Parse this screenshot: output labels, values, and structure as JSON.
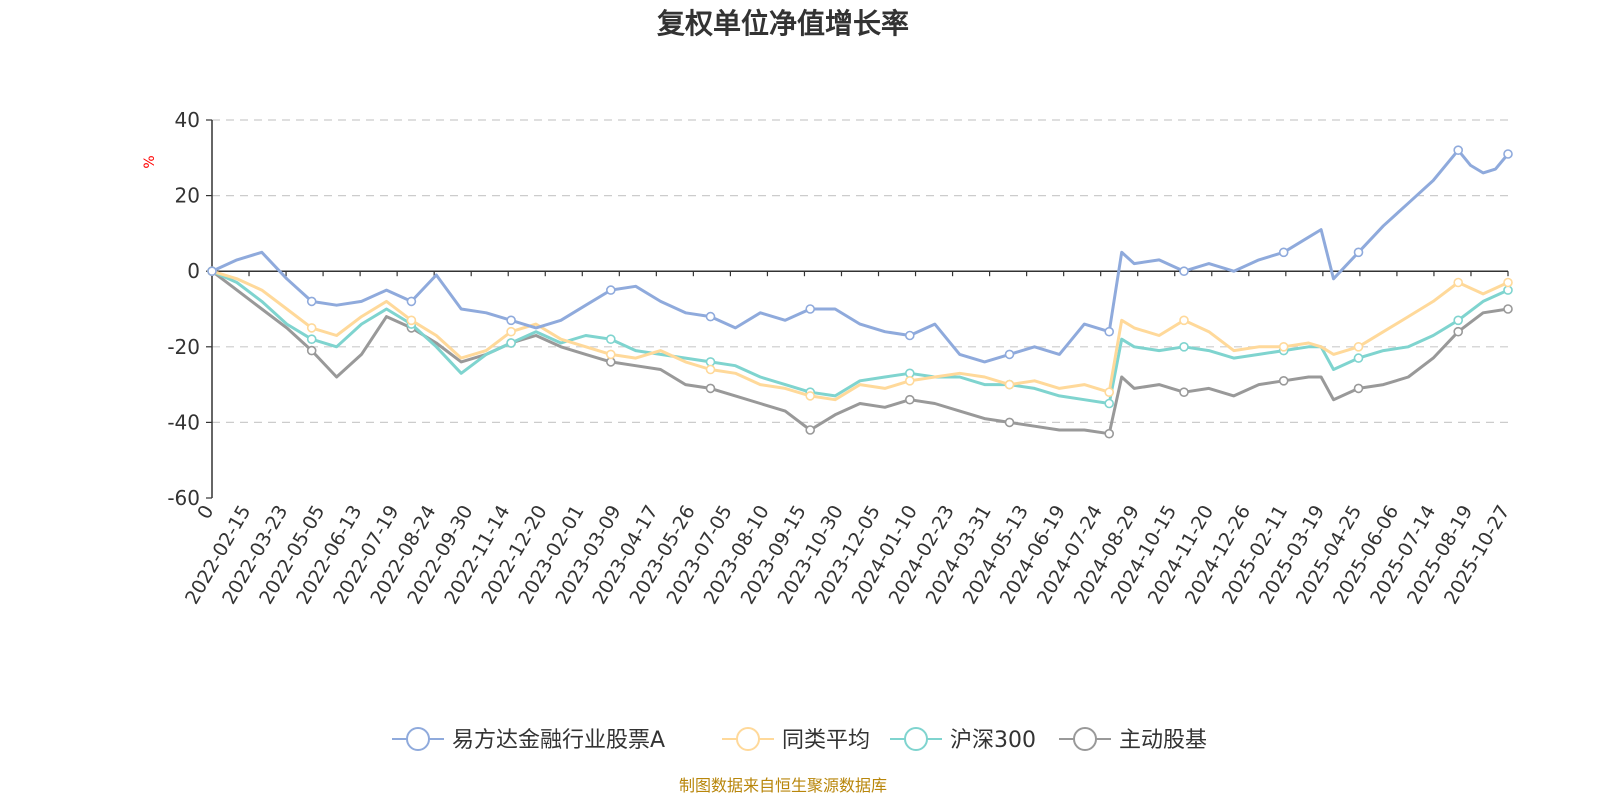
{
  "chart_data": {
    "type": "line",
    "title": "复权单位净值增长率",
    "ylabel": "%",
    "ylim": [
      -60,
      40
    ],
    "yticks": [
      "40",
      "20",
      "0",
      "-20",
      "-40",
      "-60"
    ],
    "x_origin_label": "0",
    "x_tick_labels": [
      "2022-02-15",
      "2022-03-23",
      "2022-05-05",
      "2022-06-13",
      "2022-07-19",
      "2022-08-24",
      "2022-09-30",
      "2022-11-14",
      "2022-12-20",
      "2023-02-01",
      "2023-03-09",
      "2023-04-17",
      "2023-05-26",
      "2023-07-05",
      "2023-08-10",
      "2023-09-15",
      "2023-10-30",
      "2023-12-05",
      "2024-01-10",
      "2024-02-23",
      "2024-03-31",
      "2024-05-13",
      "2024-06-19",
      "2024-07-24",
      "2024-08-29",
      "2024-10-15",
      "2024-11-20",
      "2024-12-26",
      "2025-02-11",
      "2025-03-19",
      "2025-04-25",
      "2025-06-06",
      "2025-07-14",
      "2025-08-19",
      "2025-10-27"
    ],
    "grid": true,
    "legend_position": "bottom",
    "series": [
      {
        "name": "易方达金融行业股票A",
        "color": "#8faadc",
        "points": [
          [
            0,
            0
          ],
          [
            2,
            3
          ],
          [
            4,
            5
          ],
          [
            6,
            -2
          ],
          [
            8,
            -8
          ],
          [
            10,
            -9
          ],
          [
            12,
            -8
          ],
          [
            14,
            -5
          ],
          [
            16,
            -8
          ],
          [
            18,
            -1
          ],
          [
            20,
            -10
          ],
          [
            22,
            -11
          ],
          [
            24,
            -13
          ],
          [
            26,
            -15
          ],
          [
            28,
            -13
          ],
          [
            30,
            -9
          ],
          [
            32,
            -5
          ],
          [
            34,
            -4
          ],
          [
            36,
            -8
          ],
          [
            38,
            -11
          ],
          [
            40,
            -12
          ],
          [
            42,
            -15
          ],
          [
            44,
            -11
          ],
          [
            46,
            -13
          ],
          [
            48,
            -10
          ],
          [
            50,
            -10
          ],
          [
            52,
            -14
          ],
          [
            54,
            -16
          ],
          [
            56,
            -17
          ],
          [
            58,
            -14
          ],
          [
            60,
            -22
          ],
          [
            62,
            -24
          ],
          [
            64,
            -22
          ],
          [
            66,
            -20
          ],
          [
            68,
            -22
          ],
          [
            70,
            -14
          ],
          [
            72,
            -16
          ],
          [
            73,
            5
          ],
          [
            74,
            2
          ],
          [
            76,
            3
          ],
          [
            78,
            0
          ],
          [
            80,
            2
          ],
          [
            82,
            0
          ],
          [
            84,
            3
          ],
          [
            86,
            5
          ],
          [
            88,
            9
          ],
          [
            89,
            11
          ],
          [
            90,
            -2
          ],
          [
            92,
            5
          ],
          [
            94,
            12
          ],
          [
            96,
            18
          ],
          [
            98,
            24
          ],
          [
            100,
            32
          ],
          [
            101,
            28
          ],
          [
            102,
            26
          ],
          [
            103,
            27
          ],
          [
            104,
            31
          ]
        ]
      },
      {
        "name": "同类平均",
        "color": "#ffd99a",
        "points": [
          [
            0,
            0
          ],
          [
            2,
            -2
          ],
          [
            4,
            -5
          ],
          [
            6,
            -10
          ],
          [
            8,
            -15
          ],
          [
            10,
            -17
          ],
          [
            12,
            -12
          ],
          [
            14,
            -8
          ],
          [
            16,
            -13
          ],
          [
            18,
            -17
          ],
          [
            20,
            -23
          ],
          [
            22,
            -21
          ],
          [
            24,
            -16
          ],
          [
            26,
            -14
          ],
          [
            28,
            -18
          ],
          [
            30,
            -20
          ],
          [
            32,
            -22
          ],
          [
            34,
            -23
          ],
          [
            36,
            -21
          ],
          [
            38,
            -24
          ],
          [
            40,
            -26
          ],
          [
            42,
            -27
          ],
          [
            44,
            -30
          ],
          [
            46,
            -31
          ],
          [
            48,
            -33
          ],
          [
            50,
            -34
          ],
          [
            52,
            -30
          ],
          [
            54,
            -31
          ],
          [
            56,
            -29
          ],
          [
            58,
            -28
          ],
          [
            60,
            -27
          ],
          [
            62,
            -28
          ],
          [
            64,
            -30
          ],
          [
            66,
            -29
          ],
          [
            68,
            -31
          ],
          [
            70,
            -30
          ],
          [
            72,
            -32
          ],
          [
            73,
            -13
          ],
          [
            74,
            -15
          ],
          [
            76,
            -17
          ],
          [
            78,
            -13
          ],
          [
            80,
            -16
          ],
          [
            82,
            -21
          ],
          [
            84,
            -20
          ],
          [
            86,
            -20
          ],
          [
            88,
            -19
          ],
          [
            89,
            -20
          ],
          [
            90,
            -22
          ],
          [
            92,
            -20
          ],
          [
            94,
            -16
          ],
          [
            96,
            -12
          ],
          [
            98,
            -8
          ],
          [
            100,
            -3
          ],
          [
            102,
            -6
          ],
          [
            104,
            -3
          ]
        ]
      },
      {
        "name": "沪深300",
        "color": "#7fd4cf",
        "points": [
          [
            0,
            0
          ],
          [
            2,
            -3
          ],
          [
            4,
            -8
          ],
          [
            6,
            -14
          ],
          [
            8,
            -18
          ],
          [
            10,
            -20
          ],
          [
            12,
            -14
          ],
          [
            14,
            -10
          ],
          [
            16,
            -14
          ],
          [
            18,
            -20
          ],
          [
            20,
            -27
          ],
          [
            22,
            -22
          ],
          [
            24,
            -19
          ],
          [
            26,
            -16
          ],
          [
            28,
            -19
          ],
          [
            30,
            -17
          ],
          [
            32,
            -18
          ],
          [
            34,
            -21
          ],
          [
            36,
            -22
          ],
          [
            38,
            -23
          ],
          [
            40,
            -24
          ],
          [
            42,
            -25
          ],
          [
            44,
            -28
          ],
          [
            46,
            -30
          ],
          [
            48,
            -32
          ],
          [
            50,
            -33
          ],
          [
            52,
            -29
          ],
          [
            54,
            -28
          ],
          [
            56,
            -27
          ],
          [
            58,
            -28
          ],
          [
            60,
            -28
          ],
          [
            62,
            -30
          ],
          [
            64,
            -30
          ],
          [
            66,
            -31
          ],
          [
            68,
            -33
          ],
          [
            70,
            -34
          ],
          [
            72,
            -35
          ],
          [
            73,
            -18
          ],
          [
            74,
            -20
          ],
          [
            76,
            -21
          ],
          [
            78,
            -20
          ],
          [
            80,
            -21
          ],
          [
            82,
            -23
          ],
          [
            84,
            -22
          ],
          [
            86,
            -21
          ],
          [
            88,
            -20
          ],
          [
            89,
            -20
          ],
          [
            90,
            -26
          ],
          [
            92,
            -23
          ],
          [
            94,
            -21
          ],
          [
            96,
            -20
          ],
          [
            98,
            -17
          ],
          [
            100,
            -13
          ],
          [
            102,
            -8
          ],
          [
            104,
            -5
          ]
        ]
      },
      {
        "name": "主动股基",
        "color": "#999999",
        "points": [
          [
            0,
            0
          ],
          [
            2,
            -5
          ],
          [
            4,
            -10
          ],
          [
            6,
            -15
          ],
          [
            8,
            -21
          ],
          [
            10,
            -28
          ],
          [
            12,
            -22
          ],
          [
            14,
            -12
          ],
          [
            16,
            -15
          ],
          [
            18,
            -19
          ],
          [
            20,
            -24
          ],
          [
            22,
            -22
          ],
          [
            24,
            -19
          ],
          [
            26,
            -17
          ],
          [
            28,
            -20
          ],
          [
            30,
            -22
          ],
          [
            32,
            -24
          ],
          [
            34,
            -25
          ],
          [
            36,
            -26
          ],
          [
            38,
            -30
          ],
          [
            40,
            -31
          ],
          [
            42,
            -33
          ],
          [
            44,
            -35
          ],
          [
            46,
            -37
          ],
          [
            48,
            -42
          ],
          [
            50,
            -38
          ],
          [
            52,
            -35
          ],
          [
            54,
            -36
          ],
          [
            56,
            -34
          ],
          [
            58,
            -35
          ],
          [
            60,
            -37
          ],
          [
            62,
            -39
          ],
          [
            64,
            -40
          ],
          [
            66,
            -41
          ],
          [
            68,
            -42
          ],
          [
            70,
            -42
          ],
          [
            72,
            -43
          ],
          [
            73,
            -28
          ],
          [
            74,
            -31
          ],
          [
            76,
            -30
          ],
          [
            78,
            -32
          ],
          [
            80,
            -31
          ],
          [
            82,
            -33
          ],
          [
            84,
            -30
          ],
          [
            86,
            -29
          ],
          [
            88,
            -28
          ],
          [
            89,
            -28
          ],
          [
            90,
            -34
          ],
          [
            92,
            -31
          ],
          [
            94,
            -30
          ],
          [
            96,
            -28
          ],
          [
            98,
            -23
          ],
          [
            100,
            -16
          ],
          [
            102,
            -11
          ],
          [
            104,
            -10
          ]
        ]
      }
    ]
  },
  "source_text": "制图数据来自恒生聚源数据库"
}
